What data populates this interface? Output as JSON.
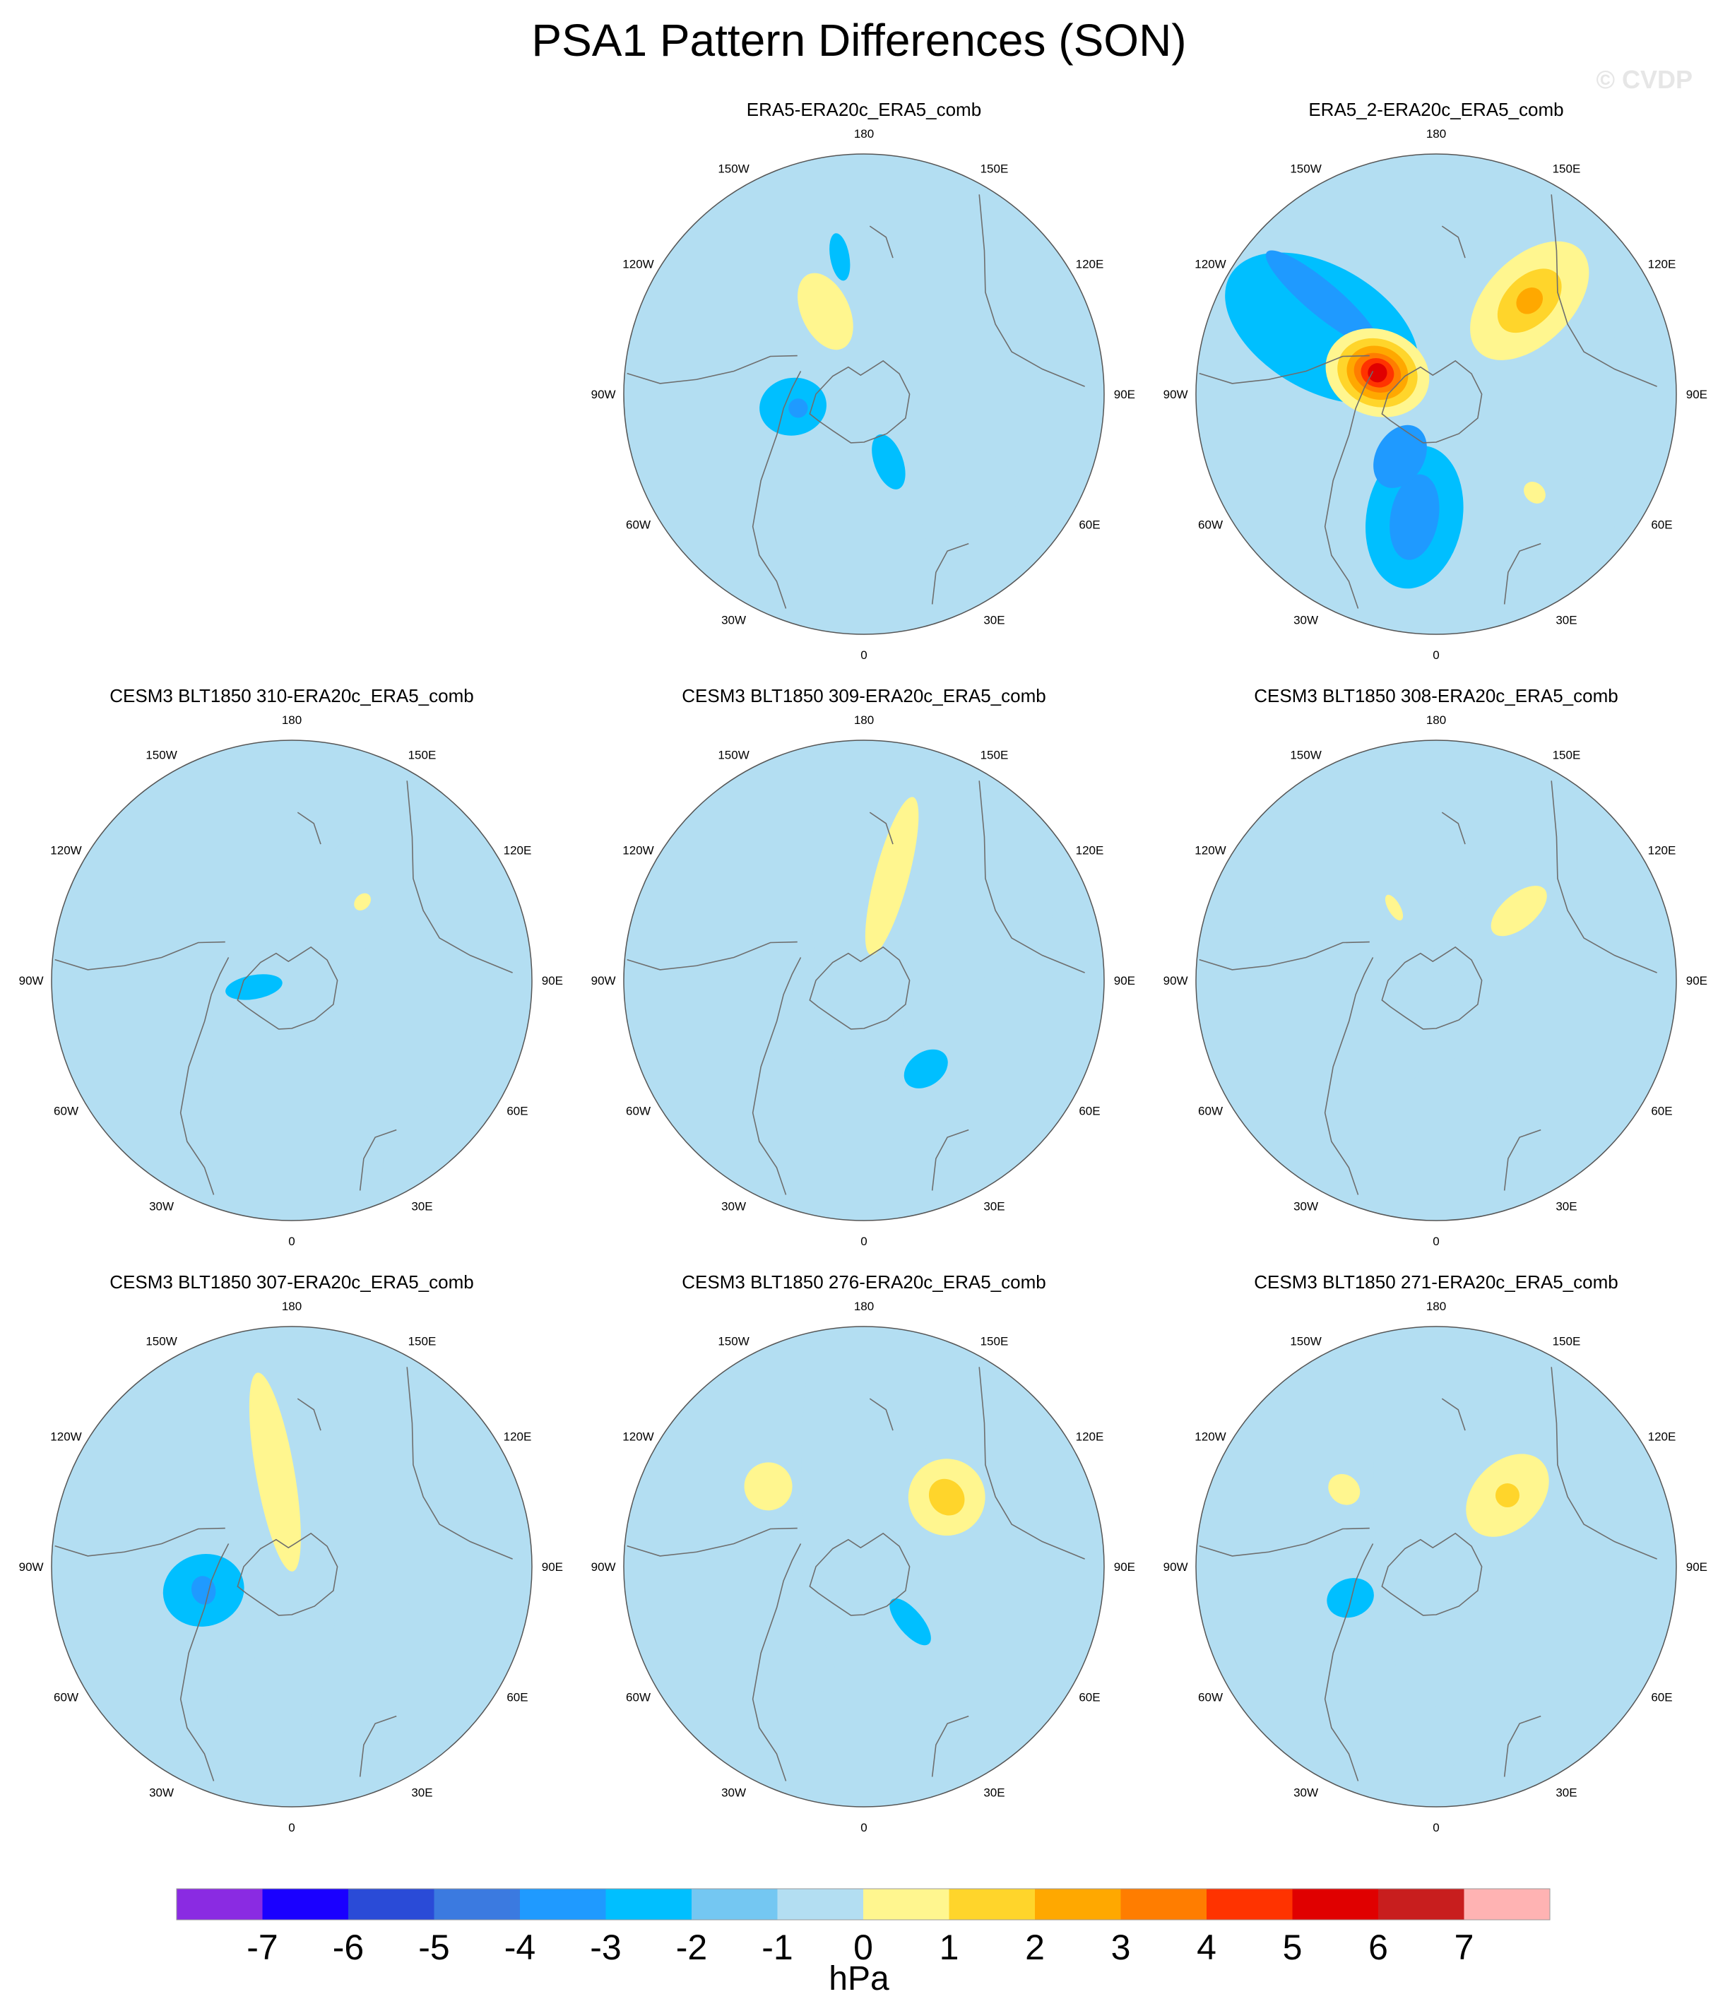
{
  "title": "PSA1 Pattern Differences (SON)",
  "watermark": "© CVDP",
  "lon_labels": [
    "0",
    "30E",
    "60E",
    "90E",
    "120E",
    "150E",
    "180",
    "150W",
    "120W",
    "90W",
    "60W",
    "30W"
  ],
  "panels": [
    {
      "title": "ERA5-ERA20c_ERA5_comb",
      "bg": "#b3def2",
      "blobs": [
        {
          "lon": 0,
          "r": 0.82,
          "a": 0.55,
          "b": 0.28,
          "rot": 0,
          "level": 0
        },
        {
          "lon": 55,
          "r": 0.62,
          "a": 0.17,
          "b": 0.1,
          "rot": 0,
          "level": 0
        },
        {
          "lon": 200,
          "r": 0.28,
          "a": 0.25,
          "b": 0.16,
          "rot": 0,
          "level": 0
        },
        {
          "lon": 205,
          "r": 0.38,
          "a": 0.17,
          "b": 0.1,
          "rot": 0,
          "level": 1
        },
        {
          "lon": 280,
          "r": 0.3,
          "a": 0.14,
          "b": 0.12,
          "rot": 0,
          "level": -2
        },
        {
          "lon": 282,
          "r": 0.28,
          "a": 0.04,
          "b": 0.04,
          "rot": 0,
          "level": -3
        },
        {
          "lon": 20,
          "r": 0.3,
          "a": 0.12,
          "b": 0.06,
          "rot": 0,
          "level": -2
        },
        {
          "lon": 190,
          "r": 0.58,
          "a": 0.1,
          "b": 0.04,
          "rot": 0,
          "level": -2
        }
      ]
    },
    {
      "title": "ERA5_2-ERA20c_ERA5_comb",
      "bg": "#b3def2",
      "blobs": [
        {
          "lon": 130,
          "r": 0.62,
          "a": 0.65,
          "b": 0.3,
          "rot": 0,
          "level": 0
        },
        {
          "lon": 40,
          "r": 0.72,
          "a": 0.35,
          "b": 0.25,
          "rot": 0,
          "level": 0
        },
        {
          "lon": 135,
          "r": 0.55,
          "a": 0.3,
          "b": 0.18,
          "rot": 0,
          "level": 1
        },
        {
          "lon": 135,
          "r": 0.55,
          "a": 0.16,
          "b": 0.1,
          "rot": 0,
          "level": 2
        },
        {
          "lon": 135,
          "r": 0.55,
          "a": 0.06,
          "b": 0.05,
          "rot": 0,
          "level": 3
        },
        {
          "lon": 45,
          "r": 0.58,
          "a": 0.05,
          "b": 0.04,
          "rot": 0,
          "level": 1
        },
        {
          "lon": 350,
          "r": 0.52,
          "a": 0.3,
          "b": 0.2,
          "rot": 0,
          "level": -2
        },
        {
          "lon": 350,
          "r": 0.52,
          "a": 0.18,
          "b": 0.1,
          "rot": 0,
          "level": -3
        },
        {
          "lon": 330,
          "r": 0.3,
          "a": 0.14,
          "b": 0.1,
          "rot": 0,
          "level": -3
        },
        {
          "lon": 240,
          "r": 0.55,
          "a": 0.44,
          "b": 0.26,
          "rot": 0,
          "level": -2
        },
        {
          "lon": 230,
          "r": 0.62,
          "a": 0.3,
          "b": 0.07,
          "rot": 0,
          "level": -3
        },
        {
          "lon": 250,
          "r": 0.26,
          "a": 0.22,
          "b": 0.18,
          "rot": 0,
          "level": 1
        },
        {
          "lon": 250,
          "r": 0.26,
          "a": 0.17,
          "b": 0.14,
          "rot": 0,
          "level": 2
        },
        {
          "lon": 250,
          "r": 0.26,
          "a": 0.13,
          "b": 0.11,
          "rot": 0,
          "level": 3
        },
        {
          "lon": 250,
          "r": 0.26,
          "a": 0.1,
          "b": 0.08,
          "rot": 0,
          "level": 4
        },
        {
          "lon": 250,
          "r": 0.26,
          "a": 0.07,
          "b": 0.06,
          "rot": 0,
          "level": 5
        },
        {
          "lon": 250,
          "r": 0.26,
          "a": 0.04,
          "b": 0.04,
          "rot": 0,
          "level": 6
        }
      ]
    },
    {
      "title": "CESM3 BLT1850 310-ERA20c_ERA5_comb",
      "bg": "#b3def2",
      "blobs": [
        {
          "lon": 0,
          "r": 0.75,
          "a": 0.7,
          "b": 0.38,
          "rot": 0,
          "level": 0
        },
        {
          "lon": 60,
          "r": 0.7,
          "a": 0.2,
          "b": 0.18,
          "rot": 0,
          "level": 0
        },
        {
          "lon": 145,
          "r": 0.38,
          "a": 0.45,
          "b": 0.18,
          "rot": 0,
          "level": 0
        },
        {
          "lon": 250,
          "r": 0.75,
          "a": 0.5,
          "b": 0.1,
          "rot": 0,
          "level": 0
        },
        {
          "lon": 138,
          "r": 0.44,
          "a": 0.04,
          "b": 0.03,
          "rot": 0,
          "level": 1
        },
        {
          "lon": 280,
          "r": 0.16,
          "a": 0.12,
          "b": 0.05,
          "rot": 0,
          "level": -2
        }
      ]
    },
    {
      "title": "CESM3 BLT1850 309-ERA20c_ERA5_comb",
      "bg": "#b3def2",
      "blobs": [
        {
          "lon": 340,
          "r": 0.5,
          "a": 0.4,
          "b": 0.14,
          "rot": 0,
          "level": 0
        },
        {
          "lon": 5,
          "r": 0.8,
          "a": 0.16,
          "b": 0.12,
          "rot": 0,
          "level": 0
        },
        {
          "lon": 180,
          "r": 0.42,
          "a": 0.9,
          "b": 0.22,
          "rot": 0,
          "level": 0
        },
        {
          "lon": 110,
          "r": 0.48,
          "a": 0.35,
          "b": 0.16,
          "rot": 0,
          "level": 0
        },
        {
          "lon": 165,
          "r": 0.45,
          "a": 0.34,
          "b": 0.07,
          "rot": 0,
          "level": 1
        },
        {
          "lon": 35,
          "r": 0.45,
          "a": 0.07,
          "b": 0.1,
          "rot": 0,
          "level": -2
        }
      ]
    },
    {
      "title": "CESM3 BLT1850 308-ERA20c_ERA5_comb",
      "bg": "#b3def2",
      "blobs": [
        {
          "lon": 5,
          "r": 0.6,
          "a": 0.28,
          "b": 0.18,
          "rot": 0,
          "level": 0
        },
        {
          "lon": 270,
          "r": 0.7,
          "a": 0.26,
          "b": 0.22,
          "rot": 0,
          "level": 0
        },
        {
          "lon": 225,
          "r": 0.8,
          "a": 0.26,
          "b": 0.16,
          "rot": 0,
          "level": 0
        },
        {
          "lon": 135,
          "r": 0.4,
          "a": 0.4,
          "b": 0.16,
          "rot": 0,
          "level": 0
        },
        {
          "lon": 130,
          "r": 0.45,
          "a": 0.14,
          "b": 0.07,
          "rot": 0,
          "level": 1
        },
        {
          "lon": 210,
          "r": 0.35,
          "a": 0.06,
          "b": 0.025,
          "rot": 0,
          "level": 1
        }
      ]
    },
    {
      "title": "CESM3 BLT1850 307-ERA20c_ERA5_comb",
      "bg": "#b3def2",
      "blobs": [
        {
          "lon": 345,
          "r": 0.5,
          "a": 0.4,
          "b": 0.12,
          "rot": 0,
          "level": 0
        },
        {
          "lon": 180,
          "r": 0.4,
          "a": 1.1,
          "b": 0.22,
          "rot": 0,
          "level": 0
        },
        {
          "lon": 60,
          "r": 0.4,
          "a": 0.24,
          "b": 0.12,
          "rot": 0,
          "level": 0
        },
        {
          "lon": 190,
          "r": 0.4,
          "a": 0.42,
          "b": 0.08,
          "rot": 0,
          "level": 1
        },
        {
          "lon": 285,
          "r": 0.38,
          "a": 0.17,
          "b": 0.15,
          "rot": 0,
          "level": -2
        },
        {
          "lon": 285,
          "r": 0.38,
          "a": 0.05,
          "b": 0.06,
          "rot": 0,
          "level": -3
        }
      ]
    },
    {
      "title": "CESM3 BLT1850 276-ERA20c_ERA5_comb",
      "bg": "#b3def2",
      "blobs": [
        {
          "lon": 180,
          "r": 0.42,
          "a": 0.95,
          "b": 0.26,
          "rot": 0,
          "level": 0
        },
        {
          "lon": 130,
          "r": 0.45,
          "a": 0.26,
          "b": 0.22,
          "rot": 0,
          "level": 0
        },
        {
          "lon": 345,
          "r": 0.7,
          "a": 0.16,
          "b": 0.13,
          "rot": 0,
          "level": 0
        },
        {
          "lon": 310,
          "r": 0.22,
          "a": 0.12,
          "b": 0.05,
          "rot": 0,
          "level": 0
        },
        {
          "lon": 130,
          "r": 0.45,
          "a": 0.16,
          "b": 0.16,
          "rot": 0,
          "level": 1
        },
        {
          "lon": 130,
          "r": 0.45,
          "a": 0.07,
          "b": 0.08,
          "rot": 0,
          "level": 2
        },
        {
          "lon": 230,
          "r": 0.52,
          "a": 0.1,
          "b": 0.1,
          "rot": 0,
          "level": 1
        },
        {
          "lon": 40,
          "r": 0.3,
          "a": 0.12,
          "b": 0.05,
          "rot": 0,
          "level": -2
        }
      ]
    },
    {
      "title": "CESM3 BLT1850 271-ERA20c_ERA5_comb",
      "bg": "#b3def2",
      "blobs": [
        {
          "lon": 180,
          "r": 0.4,
          "a": 1.0,
          "b": 0.26,
          "rot": 0,
          "level": 0
        },
        {
          "lon": 5,
          "r": 0.7,
          "a": 0.13,
          "b": 0.15,
          "rot": 0,
          "level": 0
        },
        {
          "lon": 340,
          "r": 0.2,
          "a": 0.25,
          "b": 0.08,
          "rot": 0,
          "level": 0
        },
        {
          "lon": 135,
          "r": 0.42,
          "a": 0.2,
          "b": 0.14,
          "rot": 0,
          "level": 1
        },
        {
          "lon": 135,
          "r": 0.42,
          "a": 0.05,
          "b": 0.05,
          "rot": 0,
          "level": 2
        },
        {
          "lon": 230,
          "r": 0.5,
          "a": 0.07,
          "b": 0.06,
          "rot": 0,
          "level": 1
        },
        {
          "lon": 290,
          "r": 0.38,
          "a": 0.1,
          "b": 0.08,
          "rot": 0,
          "level": -2
        }
      ]
    }
  ],
  "colorbar": {
    "unit": "hPa",
    "labels": [
      "-7",
      "-6",
      "-5",
      "-4",
      "-3",
      "-2",
      "-1",
      "0",
      "1",
      "2",
      "3",
      "4",
      "5",
      "6",
      "7"
    ],
    "colors": [
      "#8a2be2",
      "#1a00ff",
      "#2a4bd7",
      "#3b7ae0",
      "#1f9aff",
      "#00bfff",
      "#74c7f2",
      "#b3def2",
      "#fff68f",
      "#ffd52b",
      "#ffa800",
      "#ff7d00",
      "#ff3300",
      "#e00000",
      "#c81e1e",
      "#ffb3b3"
    ]
  }
}
